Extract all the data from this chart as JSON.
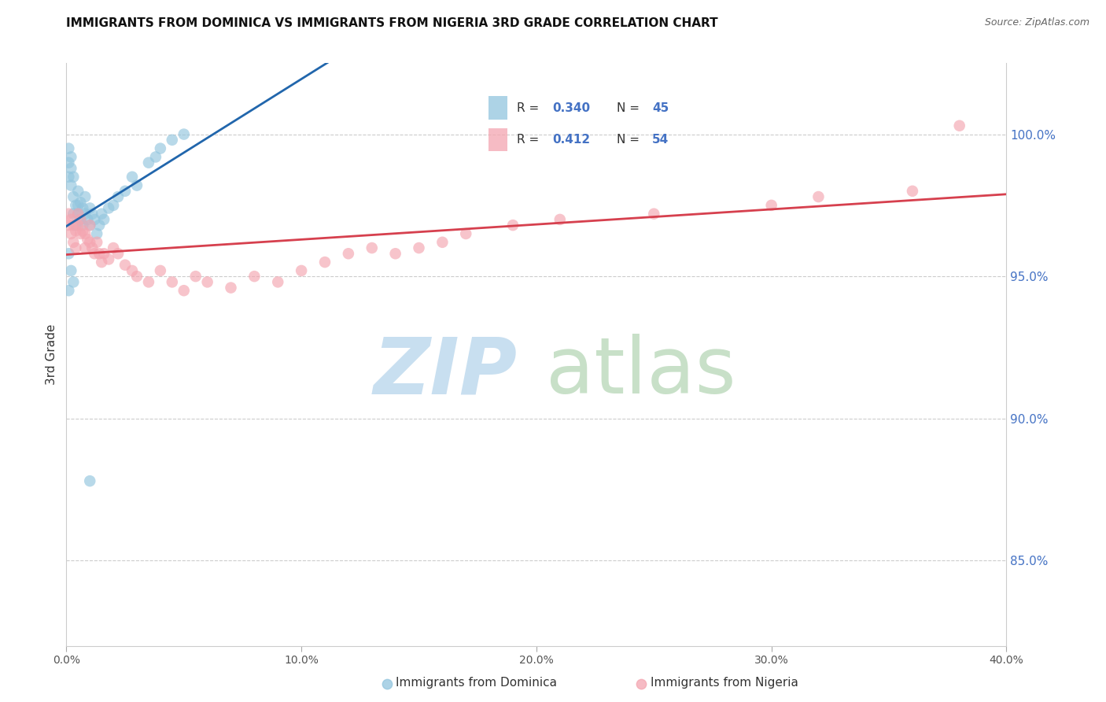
{
  "title": "IMMIGRANTS FROM DOMINICA VS IMMIGRANTS FROM NIGERIA 3RD GRADE CORRELATION CHART",
  "source": "Source: ZipAtlas.com",
  "ylabel": "3rd Grade",
  "yticks_labels": [
    "100.0%",
    "95.0%",
    "90.0%",
    "85.0%"
  ],
  "ytick_vals": [
    1.0,
    0.95,
    0.9,
    0.85
  ],
  "xlim": [
    0.0,
    0.4
  ],
  "ylim": [
    0.82,
    1.025
  ],
  "xticks": [
    0.0,
    0.1,
    0.2,
    0.3,
    0.4
  ],
  "xtick_labels": [
    "0.0%",
    "10.0%",
    "20.0%",
    "30.0%",
    "40.0%"
  ],
  "legend_R1": "0.340",
  "legend_N1": "45",
  "legend_R2": "0.412",
  "legend_N2": "54",
  "color_dominica_fill": "#92c5de",
  "color_dominica_line": "#2166ac",
  "color_nigeria_fill": "#f4a5b0",
  "color_nigeria_line": "#d6404e",
  "dominica_x": [
    0.001,
    0.001,
    0.001,
    0.002,
    0.002,
    0.002,
    0.003,
    0.003,
    0.003,
    0.004,
    0.004,
    0.005,
    0.005,
    0.005,
    0.006,
    0.006,
    0.007,
    0.007,
    0.008,
    0.008,
    0.009,
    0.01,
    0.01,
    0.011,
    0.012,
    0.013,
    0.014,
    0.015,
    0.016,
    0.018,
    0.02,
    0.022,
    0.025,
    0.028,
    0.03,
    0.035,
    0.038,
    0.04,
    0.045,
    0.05,
    0.001,
    0.002,
    0.003,
    0.001,
    0.01
  ],
  "dominica_y": [
    0.99,
    0.995,
    0.985,
    0.992,
    0.988,
    0.982,
    0.978,
    0.972,
    0.985,
    0.975,
    0.968,
    0.972,
    0.98,
    0.975,
    0.97,
    0.976,
    0.968,
    0.974,
    0.972,
    0.978,
    0.97,
    0.974,
    0.968,
    0.972,
    0.97,
    0.965,
    0.968,
    0.972,
    0.97,
    0.974,
    0.975,
    0.978,
    0.98,
    0.985,
    0.982,
    0.99,
    0.992,
    0.995,
    0.998,
    1.0,
    0.958,
    0.952,
    0.948,
    0.945,
    0.878
  ],
  "nigeria_x": [
    0.001,
    0.001,
    0.002,
    0.002,
    0.003,
    0.003,
    0.004,
    0.004,
    0.005,
    0.005,
    0.006,
    0.006,
    0.007,
    0.008,
    0.008,
    0.009,
    0.01,
    0.01,
    0.011,
    0.012,
    0.013,
    0.014,
    0.015,
    0.016,
    0.018,
    0.02,
    0.022,
    0.025,
    0.028,
    0.03,
    0.035,
    0.04,
    0.045,
    0.05,
    0.055,
    0.06,
    0.07,
    0.08,
    0.09,
    0.1,
    0.11,
    0.12,
    0.13,
    0.14,
    0.15,
    0.16,
    0.17,
    0.19,
    0.21,
    0.25,
    0.3,
    0.32,
    0.36,
    0.38
  ],
  "nigeria_y": [
    0.972,
    0.968,
    0.97,
    0.965,
    0.968,
    0.962,
    0.96,
    0.966,
    0.968,
    0.972,
    0.965,
    0.97,
    0.966,
    0.96,
    0.965,
    0.963,
    0.968,
    0.962,
    0.96,
    0.958,
    0.962,
    0.958,
    0.955,
    0.958,
    0.956,
    0.96,
    0.958,
    0.954,
    0.952,
    0.95,
    0.948,
    0.952,
    0.948,
    0.945,
    0.95,
    0.948,
    0.946,
    0.95,
    0.948,
    0.952,
    0.955,
    0.958,
    0.96,
    0.958,
    0.96,
    0.962,
    0.965,
    0.968,
    0.97,
    0.972,
    0.975,
    0.978,
    0.98,
    1.003
  ]
}
